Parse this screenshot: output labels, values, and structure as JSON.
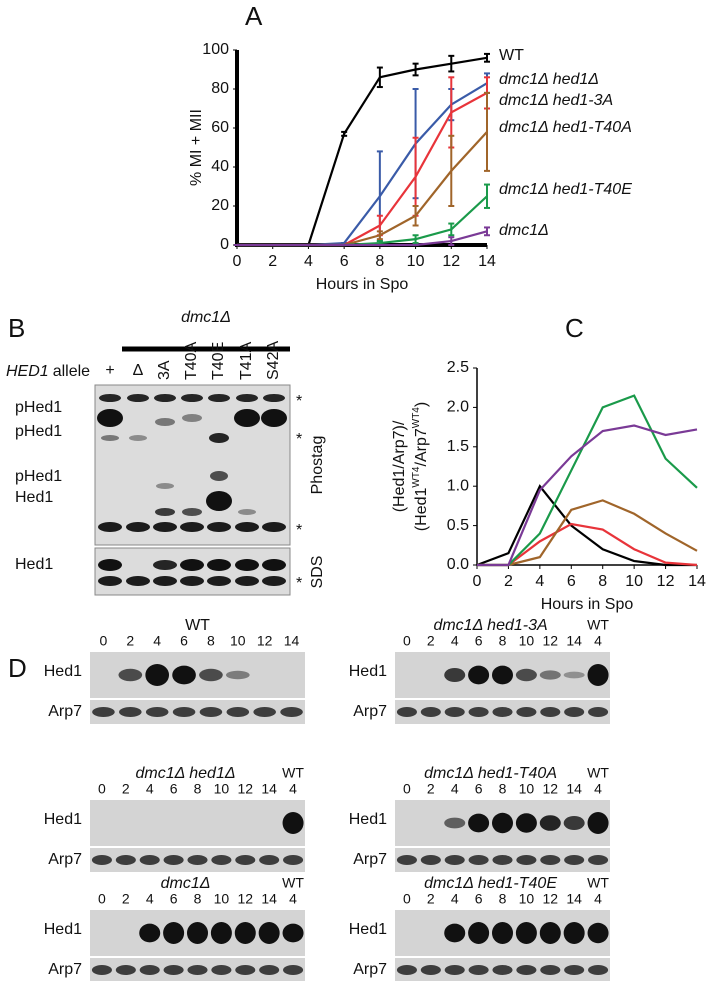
{
  "chart_data": [
    {
      "type": "line",
      "label": "A",
      "xlabel": "Hours in Spo",
      "ylabel": "% MI + MII",
      "x": [
        0,
        2,
        4,
        6,
        8,
        10,
        12,
        14
      ],
      "xlim": [
        0,
        14
      ],
      "xticks": [
        0,
        2,
        4,
        6,
        8,
        10,
        12,
        14
      ],
      "ylim": [
        0,
        100
      ],
      "yticks": [
        0,
        20,
        40,
        60,
        80,
        100
      ],
      "series": [
        {
          "name": "WT",
          "color": "#000000",
          "values": [
            0,
            0,
            0,
            57,
            86,
            90,
            93,
            96
          ],
          "errors": [
            0,
            0,
            0,
            1,
            5,
            3,
            4,
            2
          ]
        },
        {
          "name": "dmc1Δ hed1Δ",
          "color": "#3a5ba8",
          "values": [
            0,
            0,
            0,
            1,
            25,
            52,
            72,
            83
          ],
          "errors": [
            0,
            0,
            0,
            0,
            23,
            28,
            8,
            5
          ]
        },
        {
          "name": "dmc1Δ hed1-3A",
          "color": "#e8343a",
          "values": [
            0,
            0,
            0,
            0,
            10,
            35,
            68,
            78
          ],
          "errors": [
            0,
            0,
            0,
            0,
            5,
            20,
            18,
            8
          ]
        },
        {
          "name": "dmc1Δ hed1-T40A",
          "color": "#a0652a",
          "values": [
            0,
            0,
            0,
            0,
            5,
            15,
            38,
            58
          ],
          "errors": [
            0,
            0,
            0,
            0,
            2,
            5,
            18,
            20
          ]
        },
        {
          "name": "dmc1Δ hed1-T40E",
          "color": "#1a9a4a",
          "values": [
            0,
            0,
            0,
            0,
            1,
            3,
            8,
            25
          ],
          "errors": [
            0,
            0,
            0,
            0,
            1,
            2,
            3,
            6
          ]
        },
        {
          "name": "dmc1Δ",
          "color": "#7a3a96",
          "values": [
            0,
            0,
            0,
            0,
            0,
            0,
            2,
            7
          ],
          "errors": [
            0,
            0,
            0,
            0,
            0,
            0,
            2,
            2
          ]
        }
      ]
    },
    {
      "type": "line",
      "label": "C",
      "xlabel": "Hours in Spo",
      "ylabel": [
        [
          "(Hed1/Arp7)/"
        ],
        [
          "(Hed1",
          "WT4",
          "/Arp7",
          "WT4",
          ")"
        ]
      ],
      "x": [
        0,
        2,
        4,
        6,
        8,
        10,
        12,
        14
      ],
      "xlim": [
        0,
        14
      ],
      "xticks": [
        0,
        2,
        4,
        6,
        8,
        10,
        12,
        14
      ],
      "ylim": [
        0,
        2.5
      ],
      "yticks": [
        {
          "value": 0,
          "label": "0.0"
        },
        0.5,
        {
          "value": 1,
          "label": "1.0"
        },
        1.5,
        {
          "value": 2,
          "label": "2.0"
        },
        2.5
      ],
      "series": [
        {
          "color": "#000000",
          "values": [
            0,
            0.15,
            1.0,
            0.5,
            0.2,
            0.05,
            0,
            0
          ]
        },
        {
          "color": "#e8343a",
          "values": [
            0,
            0,
            0.3,
            0.52,
            0.45,
            0.2,
            0.03,
            0
          ]
        },
        {
          "color": "#a0652a",
          "values": [
            0,
            0,
            0.1,
            0.7,
            0.82,
            0.65,
            0.4,
            0.18
          ]
        },
        {
          "color": "#1a9a4a",
          "values": [
            0,
            0,
            0.4,
            1.2,
            2.0,
            2.15,
            1.35,
            0.98
          ]
        },
        {
          "color": "#7a3a96",
          "values": [
            0,
            0,
            0.95,
            1.38,
            1.7,
            1.77,
            1.65,
            1.72
          ]
        }
      ]
    }
  ],
  "blot_b": {
    "label": "B",
    "genotype": "dmc1Δ",
    "allele_gene": "HED1",
    "allele_word": "allele",
    "lanes": [
      {
        "label": "+",
        "color": "#7a3a96"
      },
      {
        "label": "Δ",
        "color": "#3a5ba8"
      },
      {
        "label": "3A",
        "color": "#e8343a"
      },
      {
        "label": "T40A",
        "color": "#a0652a"
      },
      {
        "label": "T40E",
        "color": "#1a9a4a"
      },
      {
        "label": "T41A",
        "color": "#000000"
      },
      {
        "label": "S42A",
        "color": "#000000"
      }
    ],
    "row_labels": [
      "pHed1",
      "pHed1",
      "pHed1",
      "Hed1",
      "Hed1"
    ],
    "gels": [
      "Phostag",
      "SDS"
    ],
    "markers": [
      "*",
      "*",
      "*",
      "*"
    ]
  },
  "blots_d": {
    "label": "D",
    "blots": [
      {
        "title": "WT",
        "color": "#000000",
        "lanes": [
          0,
          2,
          4,
          6,
          8,
          10,
          12,
          14
        ],
        "rows": [
          "Hed1",
          "Arp7"
        ]
      },
      {
        "title": "dmc1Δ hed1-3A",
        "color": "#e8343a",
        "lanes": [
          0,
          2,
          4,
          6,
          8,
          10,
          12,
          14
        ],
        "control": [
          "WT",
          4
        ],
        "rows": [
          "Hed1",
          "Arp7"
        ]
      },
      {
        "title": "dmc1Δ hed1Δ",
        "color": "#3a5ba8",
        "lanes": [
          0,
          2,
          4,
          6,
          8,
          10,
          12,
          14
        ],
        "control": [
          "WT",
          4
        ],
        "rows": [
          "Hed1",
          "Arp7"
        ]
      },
      {
        "title": "dmc1Δ hed1-T40A",
        "color": "#a0652a",
        "lanes": [
          0,
          2,
          4,
          6,
          8,
          10,
          12,
          14
        ],
        "control": [
          "WT",
          4
        ],
        "rows": [
          "Hed1",
          "Arp7"
        ]
      },
      {
        "title": "dmc1Δ",
        "color": "#7a3a96",
        "lanes": [
          0,
          2,
          4,
          6,
          8,
          10,
          12,
          14
        ],
        "control": [
          "WT",
          4
        ],
        "rows": [
          "Hed1",
          "Arp7"
        ]
      },
      {
        "title": "dmc1Δ hed1-T40E",
        "color": "#1a9a4a",
        "lanes": [
          0,
          2,
          4,
          6,
          8,
          10,
          12,
          14
        ],
        "control": [
          "WT",
          4
        ],
        "rows": [
          "Hed1",
          "Arp7"
        ]
      }
    ]
  }
}
